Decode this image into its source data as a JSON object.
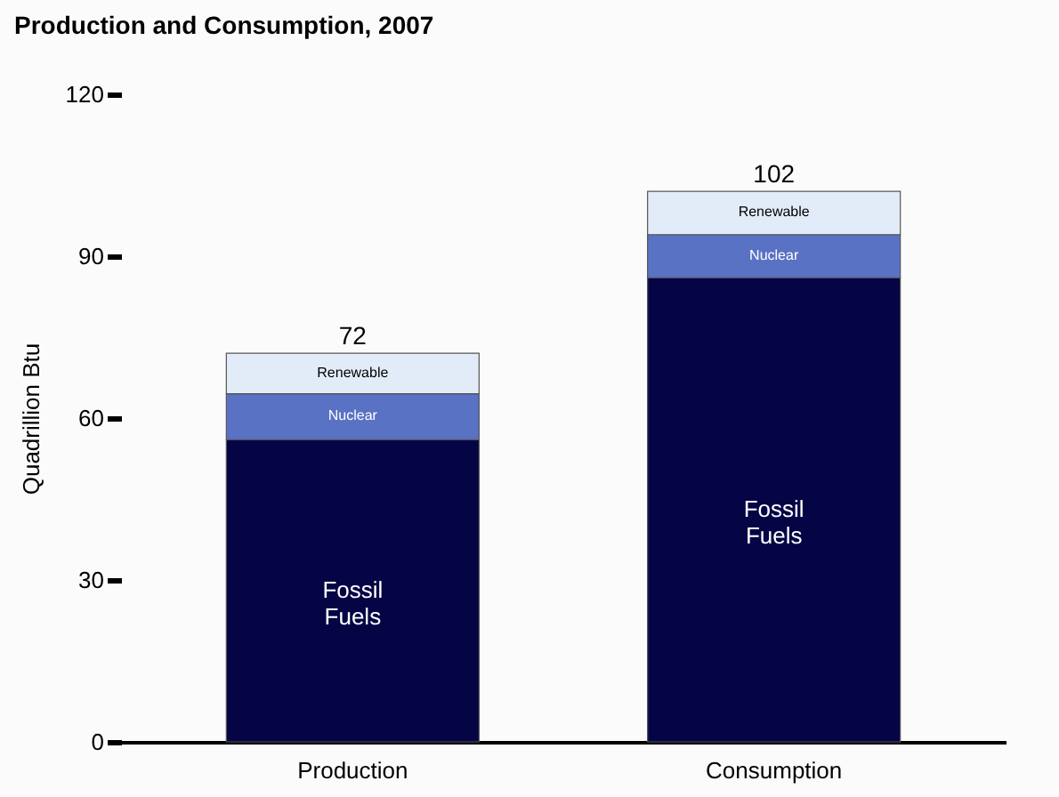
{
  "chart_data": {
    "type": "bar",
    "title": "Production and Consumption, 2007",
    "ylabel": "Quadrillion Btu",
    "categories": [
      "Production",
      "Consumption"
    ],
    "stacked": true,
    "series": [
      {
        "name": "Fossil Fuels",
        "color": "#050545",
        "values": [
          56,
          86
        ]
      },
      {
        "name": "Nuclear",
        "color": "#5a72c4",
        "values": [
          8.5,
          8
        ]
      },
      {
        "name": "Renewable",
        "color": "#e2ecf8",
        "values": [
          7.5,
          8
        ]
      }
    ],
    "totals": [
      "72",
      "102"
    ],
    "ylim": [
      0,
      120
    ],
    "yticks": [
      0,
      30,
      60,
      90,
      120
    ],
    "grid": false,
    "legend": false
  }
}
